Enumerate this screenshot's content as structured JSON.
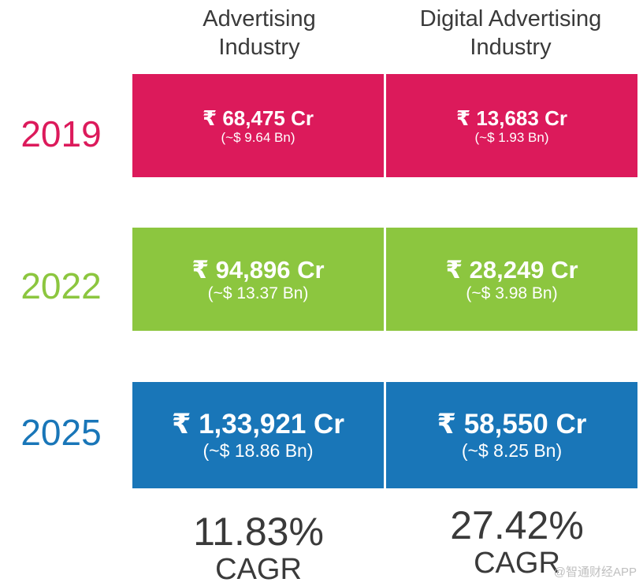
{
  "chart_data": {
    "type": "table",
    "columns": [
      "Advertising Industry",
      "Digital Advertising Industry"
    ],
    "column_header_lines": [
      [
        "Advertising",
        "Industry"
      ],
      [
        "Digital Advertising",
        "Industry"
      ]
    ],
    "rows": [
      {
        "year": "2019",
        "color": "#dc1a5b",
        "cells": [
          {
            "value_label": "₹ 68,475 Cr",
            "value_inr_cr": 68475,
            "usd_label": "(~$ 9.64 Bn)",
            "usd_bn": 9.64
          },
          {
            "value_label": "₹ 13,683 Cr",
            "value_inr_cr": 13683,
            "usd_label": "(~$ 1.93 Bn)",
            "usd_bn": 1.93
          }
        ]
      },
      {
        "year": "2022",
        "color": "#8cc63f",
        "cells": [
          {
            "value_label": "₹ 94,896 Cr",
            "value_inr_cr": 94896,
            "usd_label": "(~$ 13.37 Bn)",
            "usd_bn": 13.37
          },
          {
            "value_label": "₹ 28,249 Cr",
            "value_inr_cr": 28249,
            "usd_label": "(~$ 3.98 Bn)",
            "usd_bn": 3.98
          }
        ]
      },
      {
        "year": "2025",
        "color": "#1976b8",
        "cells": [
          {
            "value_label": "₹ 1,33,921 Cr",
            "value_inr_cr": 133921,
            "usd_label": "(~$ 18.86 Bn)",
            "usd_bn": 18.86
          },
          {
            "value_label": "₹ 58,550 Cr",
            "value_inr_cr": 58550,
            "usd_label": "(~$ 8.25 Bn)",
            "usd_bn": 8.25
          }
        ]
      }
    ],
    "cagr": [
      {
        "value_label": "11.83%",
        "value": 11.83,
        "label": "CAGR"
      },
      {
        "value_label": "27.42%",
        "value": 27.42,
        "label": "CAGR"
      }
    ]
  },
  "watermark": "@智通财经APP"
}
